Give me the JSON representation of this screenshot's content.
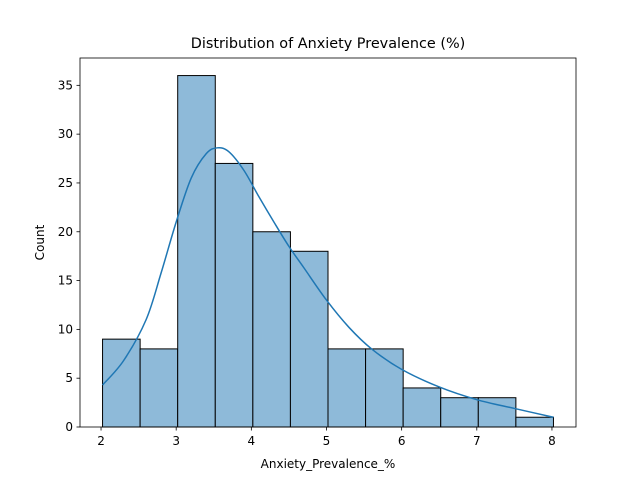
{
  "chart_data": {
    "type": "bar",
    "title": "Distribution of Anxiety Prevalence (%)",
    "xlabel": "Anxiety_Prevalence_%",
    "ylabel": "Count",
    "bin_edges": [
      2.02,
      2.52,
      3.02,
      3.52,
      4.02,
      4.52,
      5.02,
      5.52,
      6.02,
      6.52,
      7.02,
      7.52,
      8.02
    ],
    "values": [
      9,
      8,
      36,
      27,
      20,
      18,
      8,
      8,
      4,
      3,
      3,
      1
    ],
    "xlim": [
      1.72,
      8.32
    ],
    "ylim": [
      0,
      37.8
    ],
    "xticks": [
      2,
      3,
      4,
      5,
      6,
      7,
      8
    ],
    "yticks": [
      0,
      5,
      10,
      15,
      20,
      25,
      30,
      35
    ],
    "kde": {
      "x": [
        2.02,
        2.3,
        2.6,
        2.8,
        3.0,
        3.2,
        3.4,
        3.55,
        3.7,
        3.9,
        4.1,
        4.3,
        4.5,
        4.7,
        5.0,
        5.3,
        5.6,
        6.0,
        6.5,
        7.0,
        7.5,
        8.02
      ],
      "y": [
        4.3,
        6.8,
        11.0,
        15.8,
        21.0,
        25.5,
        28.0,
        28.6,
        28.2,
        26.3,
        23.6,
        21.0,
        18.5,
        16.3,
        13.0,
        10.2,
        8.0,
        5.9,
        4.1,
        2.8,
        1.9,
        1.0
      ]
    },
    "colors": {
      "bar_fill": "#8ebad9",
      "bar_edge": "#000000",
      "kde_line": "#1f77b4"
    },
    "grid": false,
    "legend": "none"
  }
}
